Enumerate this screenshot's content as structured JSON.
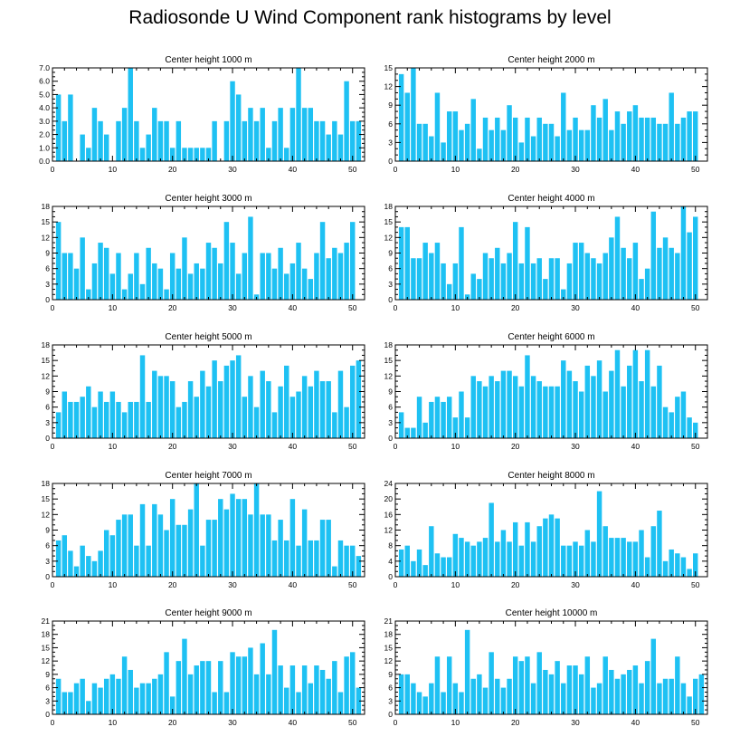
{
  "title": "Radiosonde U Wind Component rank histograms by level",
  "colors": {
    "bar": "#1ec1f3",
    "axis": "#000000"
  },
  "chart_data": [
    {
      "type": "bar",
      "title": "Center height 1000 m",
      "xlim": [
        0,
        52
      ],
      "ylim": [
        0,
        7
      ],
      "yticks": [
        0,
        1,
        2,
        3,
        4,
        5,
        6,
        7
      ],
      "ytick_labels": [
        "0.0",
        "1.0",
        "2.0",
        "3.0",
        "4.0",
        "5.0",
        "6.0",
        "7.0"
      ],
      "xticks": [
        0,
        10,
        20,
        30,
        40,
        50
      ],
      "xtick_labels": [
        "0",
        "10",
        "20",
        "30",
        "40",
        "50"
      ],
      "categories": [
        1,
        2,
        3,
        4,
        5,
        6,
        7,
        8,
        9,
        10,
        11,
        12,
        13,
        14,
        15,
        16,
        17,
        18,
        19,
        20,
        21,
        22,
        23,
        24,
        25,
        26,
        27,
        28,
        29,
        30,
        31,
        32,
        33,
        34,
        35,
        36,
        37,
        38,
        39,
        40,
        41,
        42,
        43,
        44,
        45,
        46,
        47,
        48,
        49,
        50,
        51
      ],
      "values": [
        5,
        3,
        5,
        0,
        2,
        1,
        4,
        3,
        2,
        0,
        3,
        4,
        7,
        3,
        1,
        2,
        4,
        3,
        3,
        1,
        3,
        1,
        1,
        1,
        1,
        1,
        3,
        0,
        3,
        6,
        5,
        3,
        4,
        3,
        4,
        1,
        3,
        4,
        1,
        4,
        7,
        4,
        4,
        3,
        3,
        2,
        3,
        2,
        6,
        3,
        3
      ]
    },
    {
      "type": "bar",
      "title": "Center height 2000 m",
      "xlim": [
        0,
        52
      ],
      "ylim": [
        0,
        15
      ],
      "yticks": [
        0,
        3,
        6,
        9,
        12,
        15
      ],
      "ytick_labels": [
        "0",
        "3",
        "6",
        "9",
        "12",
        "15"
      ],
      "xticks": [
        0,
        10,
        20,
        30,
        40,
        50
      ],
      "xtick_labels": [
        "0",
        "10",
        "20",
        "30",
        "40",
        "50"
      ],
      "categories": [
        1,
        2,
        3,
        4,
        5,
        6,
        7,
        8,
        9,
        10,
        11,
        12,
        13,
        14,
        15,
        16,
        17,
        18,
        19,
        20,
        21,
        22,
        23,
        24,
        25,
        26,
        27,
        28,
        29,
        30,
        31,
        32,
        33,
        34,
        35,
        36,
        37,
        38,
        39,
        40,
        41,
        42,
        43,
        44,
        45,
        46,
        47,
        48,
        49,
        50,
        51
      ],
      "values": [
        14,
        11,
        15,
        6,
        6,
        4,
        11,
        3,
        8,
        8,
        5,
        6,
        10,
        2,
        7,
        5,
        7,
        5,
        9,
        7,
        3,
        7,
        4,
        7,
        6,
        6,
        4,
        11,
        5,
        7,
        5,
        5,
        9,
        7,
        10,
        5,
        8,
        6,
        8,
        9,
        7,
        7,
        7,
        6,
        6,
        11,
        6,
        7,
        8,
        8,
        0
      ]
    },
    {
      "type": "bar",
      "title": "Center height 3000 m",
      "xlim": [
        0,
        52
      ],
      "ylim": [
        0,
        18
      ],
      "yticks": [
        0,
        3,
        6,
        9,
        12,
        15,
        18
      ],
      "ytick_labels": [
        "0",
        "3",
        "6",
        "9",
        "12",
        "15",
        "18"
      ],
      "xticks": [
        0,
        10,
        20,
        30,
        40,
        50
      ],
      "xtick_labels": [
        "0",
        "10",
        "20",
        "30",
        "40",
        "50"
      ],
      "categories": [
        1,
        2,
        3,
        4,
        5,
        6,
        7,
        8,
        9,
        10,
        11,
        12,
        13,
        14,
        15,
        16,
        17,
        18,
        19,
        20,
        21,
        22,
        23,
        24,
        25,
        26,
        27,
        28,
        29,
        30,
        31,
        32,
        33,
        34,
        35,
        36,
        37,
        38,
        39,
        40,
        41,
        42,
        43,
        44,
        45,
        46,
        47,
        48,
        49,
        50,
        51
      ],
      "values": [
        15,
        9,
        9,
        6,
        12,
        2,
        7,
        11,
        10,
        5,
        9,
        2,
        5,
        9,
        3,
        10,
        7,
        6,
        2,
        9,
        6,
        12,
        5,
        7,
        6,
        11,
        10,
        7,
        15,
        11,
        5,
        9,
        16,
        1,
        9,
        9,
        6,
        10,
        5,
        7,
        11,
        6,
        4,
        9,
        15,
        8,
        10,
        9,
        11,
        15,
        0
      ]
    },
    {
      "type": "bar",
      "title": "Center height 4000 m",
      "xlim": [
        0,
        52
      ],
      "ylim": [
        0,
        18
      ],
      "yticks": [
        0,
        3,
        6,
        9,
        12,
        15,
        18
      ],
      "ytick_labels": [
        "0",
        "3",
        "6",
        "9",
        "12",
        "15",
        "18"
      ],
      "xticks": [
        0,
        10,
        20,
        30,
        40,
        50
      ],
      "xtick_labels": [
        "0",
        "10",
        "20",
        "30",
        "40",
        "50"
      ],
      "categories": [
        1,
        2,
        3,
        4,
        5,
        6,
        7,
        8,
        9,
        10,
        11,
        12,
        13,
        14,
        15,
        16,
        17,
        18,
        19,
        20,
        21,
        22,
        23,
        24,
        25,
        26,
        27,
        28,
        29,
        30,
        31,
        32,
        33,
        34,
        35,
        36,
        37,
        38,
        39,
        40,
        41,
        42,
        43,
        44,
        45,
        46,
        47,
        48,
        49,
        50,
        51
      ],
      "values": [
        14,
        14,
        8,
        8,
        11,
        9,
        11,
        7,
        3,
        7,
        14,
        1,
        5,
        4,
        9,
        8,
        10,
        7,
        9,
        15,
        7,
        14,
        7,
        8,
        4,
        8,
        8,
        2,
        7,
        11,
        11,
        9,
        8,
        7,
        9,
        12,
        16,
        10,
        8,
        11,
        4,
        6,
        17,
        10,
        12,
        10,
        9,
        18,
        13,
        16,
        0
      ]
    },
    {
      "type": "bar",
      "title": "Center height 5000 m",
      "xlim": [
        0,
        52
      ],
      "ylim": [
        0,
        18
      ],
      "yticks": [
        0,
        3,
        6,
        9,
        12,
        15,
        18
      ],
      "ytick_labels": [
        "0",
        "3",
        "6",
        "9",
        "12",
        "15",
        "18"
      ],
      "xticks": [
        0,
        10,
        20,
        30,
        40,
        50
      ],
      "xtick_labels": [
        "0",
        "10",
        "20",
        "30",
        "40",
        "50"
      ],
      "categories": [
        1,
        2,
        3,
        4,
        5,
        6,
        7,
        8,
        9,
        10,
        11,
        12,
        13,
        14,
        15,
        16,
        17,
        18,
        19,
        20,
        21,
        22,
        23,
        24,
        25,
        26,
        27,
        28,
        29,
        30,
        31,
        32,
        33,
        34,
        35,
        36,
        37,
        38,
        39,
        40,
        41,
        42,
        43,
        44,
        45,
        46,
        47,
        48,
        49,
        50,
        51
      ],
      "values": [
        5,
        9,
        7,
        7,
        8,
        10,
        6,
        9,
        7,
        9,
        7,
        5,
        7,
        7,
        16,
        7,
        13,
        12,
        12,
        11,
        6,
        7,
        11,
        8,
        13,
        10,
        15,
        11,
        14,
        15,
        16,
        8,
        12,
        6,
        13,
        11,
        5,
        10,
        14,
        8,
        9,
        12,
        10,
        13,
        11,
        11,
        5,
        13,
        6,
        14,
        15
      ]
    },
    {
      "type": "bar",
      "title": "Center height 6000 m",
      "xlim": [
        0,
        52
      ],
      "ylim": [
        0,
        18
      ],
      "yticks": [
        0,
        3,
        6,
        9,
        12,
        15,
        18
      ],
      "ytick_labels": [
        "0",
        "3",
        "6",
        "9",
        "12",
        "15",
        "18"
      ],
      "xticks": [
        0,
        10,
        20,
        30,
        40,
        50
      ],
      "xtick_labels": [
        "0",
        "10",
        "20",
        "30",
        "40",
        "50"
      ],
      "categories": [
        1,
        2,
        3,
        4,
        5,
        6,
        7,
        8,
        9,
        10,
        11,
        12,
        13,
        14,
        15,
        16,
        17,
        18,
        19,
        20,
        21,
        22,
        23,
        24,
        25,
        26,
        27,
        28,
        29,
        30,
        31,
        32,
        33,
        34,
        35,
        36,
        37,
        38,
        39,
        40,
        41,
        42,
        43,
        44,
        45,
        46,
        47,
        48,
        49,
        50,
        51
      ],
      "values": [
        5,
        2,
        2,
        8,
        3,
        7,
        8,
        7,
        8,
        4,
        9,
        4,
        12,
        11,
        10,
        12,
        11,
        13,
        13,
        12,
        10,
        16,
        12,
        11,
        10,
        10,
        10,
        15,
        13,
        11,
        9,
        14,
        12,
        15,
        9,
        13,
        17,
        10,
        14,
        17,
        11,
        17,
        10,
        14,
        6,
        5,
        8,
        9,
        4,
        3,
        0
      ]
    },
    {
      "type": "bar",
      "title": "Center height 7000 m",
      "xlim": [
        0,
        52
      ],
      "ylim": [
        0,
        18
      ],
      "yticks": [
        0,
        3,
        6,
        9,
        12,
        15,
        18
      ],
      "ytick_labels": [
        "0",
        "3",
        "6",
        "9",
        "12",
        "15",
        "18"
      ],
      "xticks": [
        0,
        10,
        20,
        30,
        40,
        50
      ],
      "xtick_labels": [
        "0",
        "10",
        "20",
        "30",
        "40",
        "50"
      ],
      "categories": [
        1,
        2,
        3,
        4,
        5,
        6,
        7,
        8,
        9,
        10,
        11,
        12,
        13,
        14,
        15,
        16,
        17,
        18,
        19,
        20,
        21,
        22,
        23,
        24,
        25,
        26,
        27,
        28,
        29,
        30,
        31,
        32,
        33,
        34,
        35,
        36,
        37,
        38,
        39,
        40,
        41,
        42,
        43,
        44,
        45,
        46,
        47,
        48,
        49,
        50,
        51
      ],
      "values": [
        7,
        8,
        5,
        2,
        6,
        4,
        3,
        5,
        9,
        8,
        11,
        12,
        12,
        6,
        14,
        6,
        14,
        12,
        9,
        15,
        10,
        10,
        13,
        18,
        6,
        11,
        11,
        15,
        13,
        16,
        15,
        15,
        12,
        18,
        12,
        12,
        7,
        11,
        7,
        15,
        6,
        13,
        7,
        7,
        11,
        11,
        2,
        7,
        6,
        6,
        4
      ]
    },
    {
      "type": "bar",
      "title": "Center height 8000 m",
      "xlim": [
        0,
        52
      ],
      "ylim": [
        0,
        24
      ],
      "yticks": [
        0,
        4,
        8,
        12,
        16,
        20,
        24
      ],
      "ytick_labels": [
        "0",
        "4",
        "8",
        "12",
        "16",
        "20",
        "24"
      ],
      "xticks": [
        0,
        10,
        20,
        30,
        40,
        50
      ],
      "xtick_labels": [
        "0",
        "10",
        "20",
        "30",
        "40",
        "50"
      ],
      "categories": [
        1,
        2,
        3,
        4,
        5,
        6,
        7,
        8,
        9,
        10,
        11,
        12,
        13,
        14,
        15,
        16,
        17,
        18,
        19,
        20,
        21,
        22,
        23,
        24,
        25,
        26,
        27,
        28,
        29,
        30,
        31,
        32,
        33,
        34,
        35,
        36,
        37,
        38,
        39,
        40,
        41,
        42,
        43,
        44,
        45,
        46,
        47,
        48,
        49,
        50,
        51
      ],
      "values": [
        7,
        8,
        4,
        7,
        3,
        13,
        6,
        5,
        5,
        11,
        10,
        9,
        8,
        9,
        10,
        19,
        9,
        12,
        9,
        14,
        8,
        14,
        9,
        13,
        15,
        16,
        15,
        8,
        8,
        9,
        8,
        12,
        9,
        22,
        13,
        10,
        10,
        10,
        9,
        9,
        12,
        5,
        13,
        17,
        4,
        7,
        6,
        5,
        2,
        6,
        0
      ]
    },
    {
      "type": "bar",
      "title": "Center height 9000 m",
      "xlim": [
        0,
        52
      ],
      "ylim": [
        0,
        21
      ],
      "yticks": [
        0,
        3,
        6,
        9,
        12,
        15,
        18,
        21
      ],
      "ytick_labels": [
        "0",
        "3",
        "6",
        "9",
        "12",
        "15",
        "18",
        "21"
      ],
      "xticks": [
        0,
        10,
        20,
        30,
        40,
        50
      ],
      "xtick_labels": [
        "0",
        "10",
        "20",
        "30",
        "40",
        "50"
      ],
      "categories": [
        1,
        2,
        3,
        4,
        5,
        6,
        7,
        8,
        9,
        10,
        11,
        12,
        13,
        14,
        15,
        16,
        17,
        18,
        19,
        20,
        21,
        22,
        23,
        24,
        25,
        26,
        27,
        28,
        29,
        30,
        31,
        32,
        33,
        34,
        35,
        36,
        37,
        38,
        39,
        40,
        41,
        42,
        43,
        44,
        45,
        46,
        47,
        48,
        49,
        50,
        51
      ],
      "values": [
        8,
        5,
        5,
        7,
        8,
        3,
        7,
        6,
        8,
        9,
        8,
        13,
        10,
        6,
        7,
        7,
        8,
        9,
        14,
        4,
        12,
        17,
        9,
        11,
        12,
        12,
        5,
        12,
        5,
        14,
        13,
        13,
        15,
        9,
        16,
        9,
        19,
        11,
        6,
        11,
        5,
        11,
        7,
        11,
        10,
        8,
        12,
        5,
        13,
        14,
        6
      ]
    },
    {
      "type": "bar",
      "title": "Center height 10000 m",
      "xlim": [
        0,
        52
      ],
      "ylim": [
        0,
        21
      ],
      "yticks": [
        0,
        3,
        6,
        9,
        12,
        15,
        18,
        21
      ],
      "ytick_labels": [
        "0",
        "3",
        "6",
        "9",
        "12",
        "15",
        "18",
        "21"
      ],
      "xticks": [
        0,
        10,
        20,
        30,
        40,
        50
      ],
      "xtick_labels": [
        "0",
        "10",
        "20",
        "30",
        "40",
        "50"
      ],
      "categories": [
        1,
        2,
        3,
        4,
        5,
        6,
        7,
        8,
        9,
        10,
        11,
        12,
        13,
        14,
        15,
        16,
        17,
        18,
        19,
        20,
        21,
        22,
        23,
        24,
        25,
        26,
        27,
        28,
        29,
        30,
        31,
        32,
        33,
        34,
        35,
        36,
        37,
        38,
        39,
        40,
        41,
        42,
        43,
        44,
        45,
        46,
        47,
        48,
        49,
        50,
        51
      ],
      "values": [
        9,
        9,
        7,
        5,
        4,
        7,
        13,
        5,
        13,
        7,
        5,
        19,
        8,
        9,
        6,
        14,
        8,
        6,
        8,
        13,
        12,
        13,
        7,
        14,
        10,
        9,
        12,
        7,
        11,
        11,
        9,
        13,
        6,
        7,
        13,
        10,
        8,
        9,
        10,
        11,
        7,
        12,
        17,
        7,
        8,
        8,
        13,
        7,
        4,
        8,
        9
      ]
    }
  ]
}
